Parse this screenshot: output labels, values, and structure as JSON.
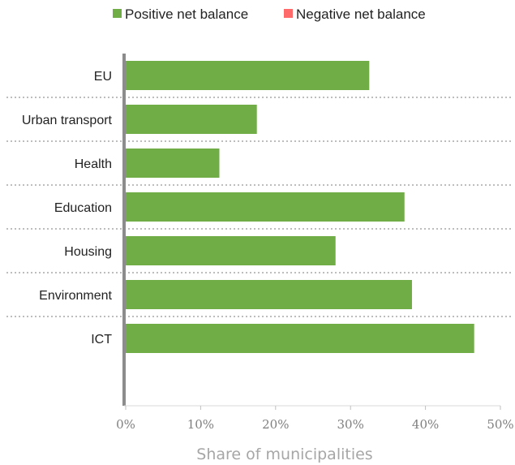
{
  "chart_data": {
    "type": "bar",
    "orientation": "horizontal",
    "categories": [
      "EU",
      "Urban transport",
      "Health",
      "Education",
      "Housing",
      "Environment",
      "ICT"
    ],
    "series": [
      {
        "name": "Positive net balance",
        "color": "#70ad47",
        "values": [
          32.5,
          17.5,
          12.5,
          37.2,
          28.0,
          38.2,
          46.5
        ]
      },
      {
        "name": "Negative net balance",
        "color": "#ff6b6b",
        "values": [
          0,
          0,
          0,
          0,
          0,
          0,
          0
        ]
      }
    ],
    "x_ticks": [
      "0%",
      "10%",
      "20%",
      "30%",
      "40%",
      "50%"
    ],
    "xlim": [
      0,
      50
    ],
    "xlabel": "Share of municipalities",
    "legend_position": "top",
    "grid": "dotted separators between categories"
  }
}
